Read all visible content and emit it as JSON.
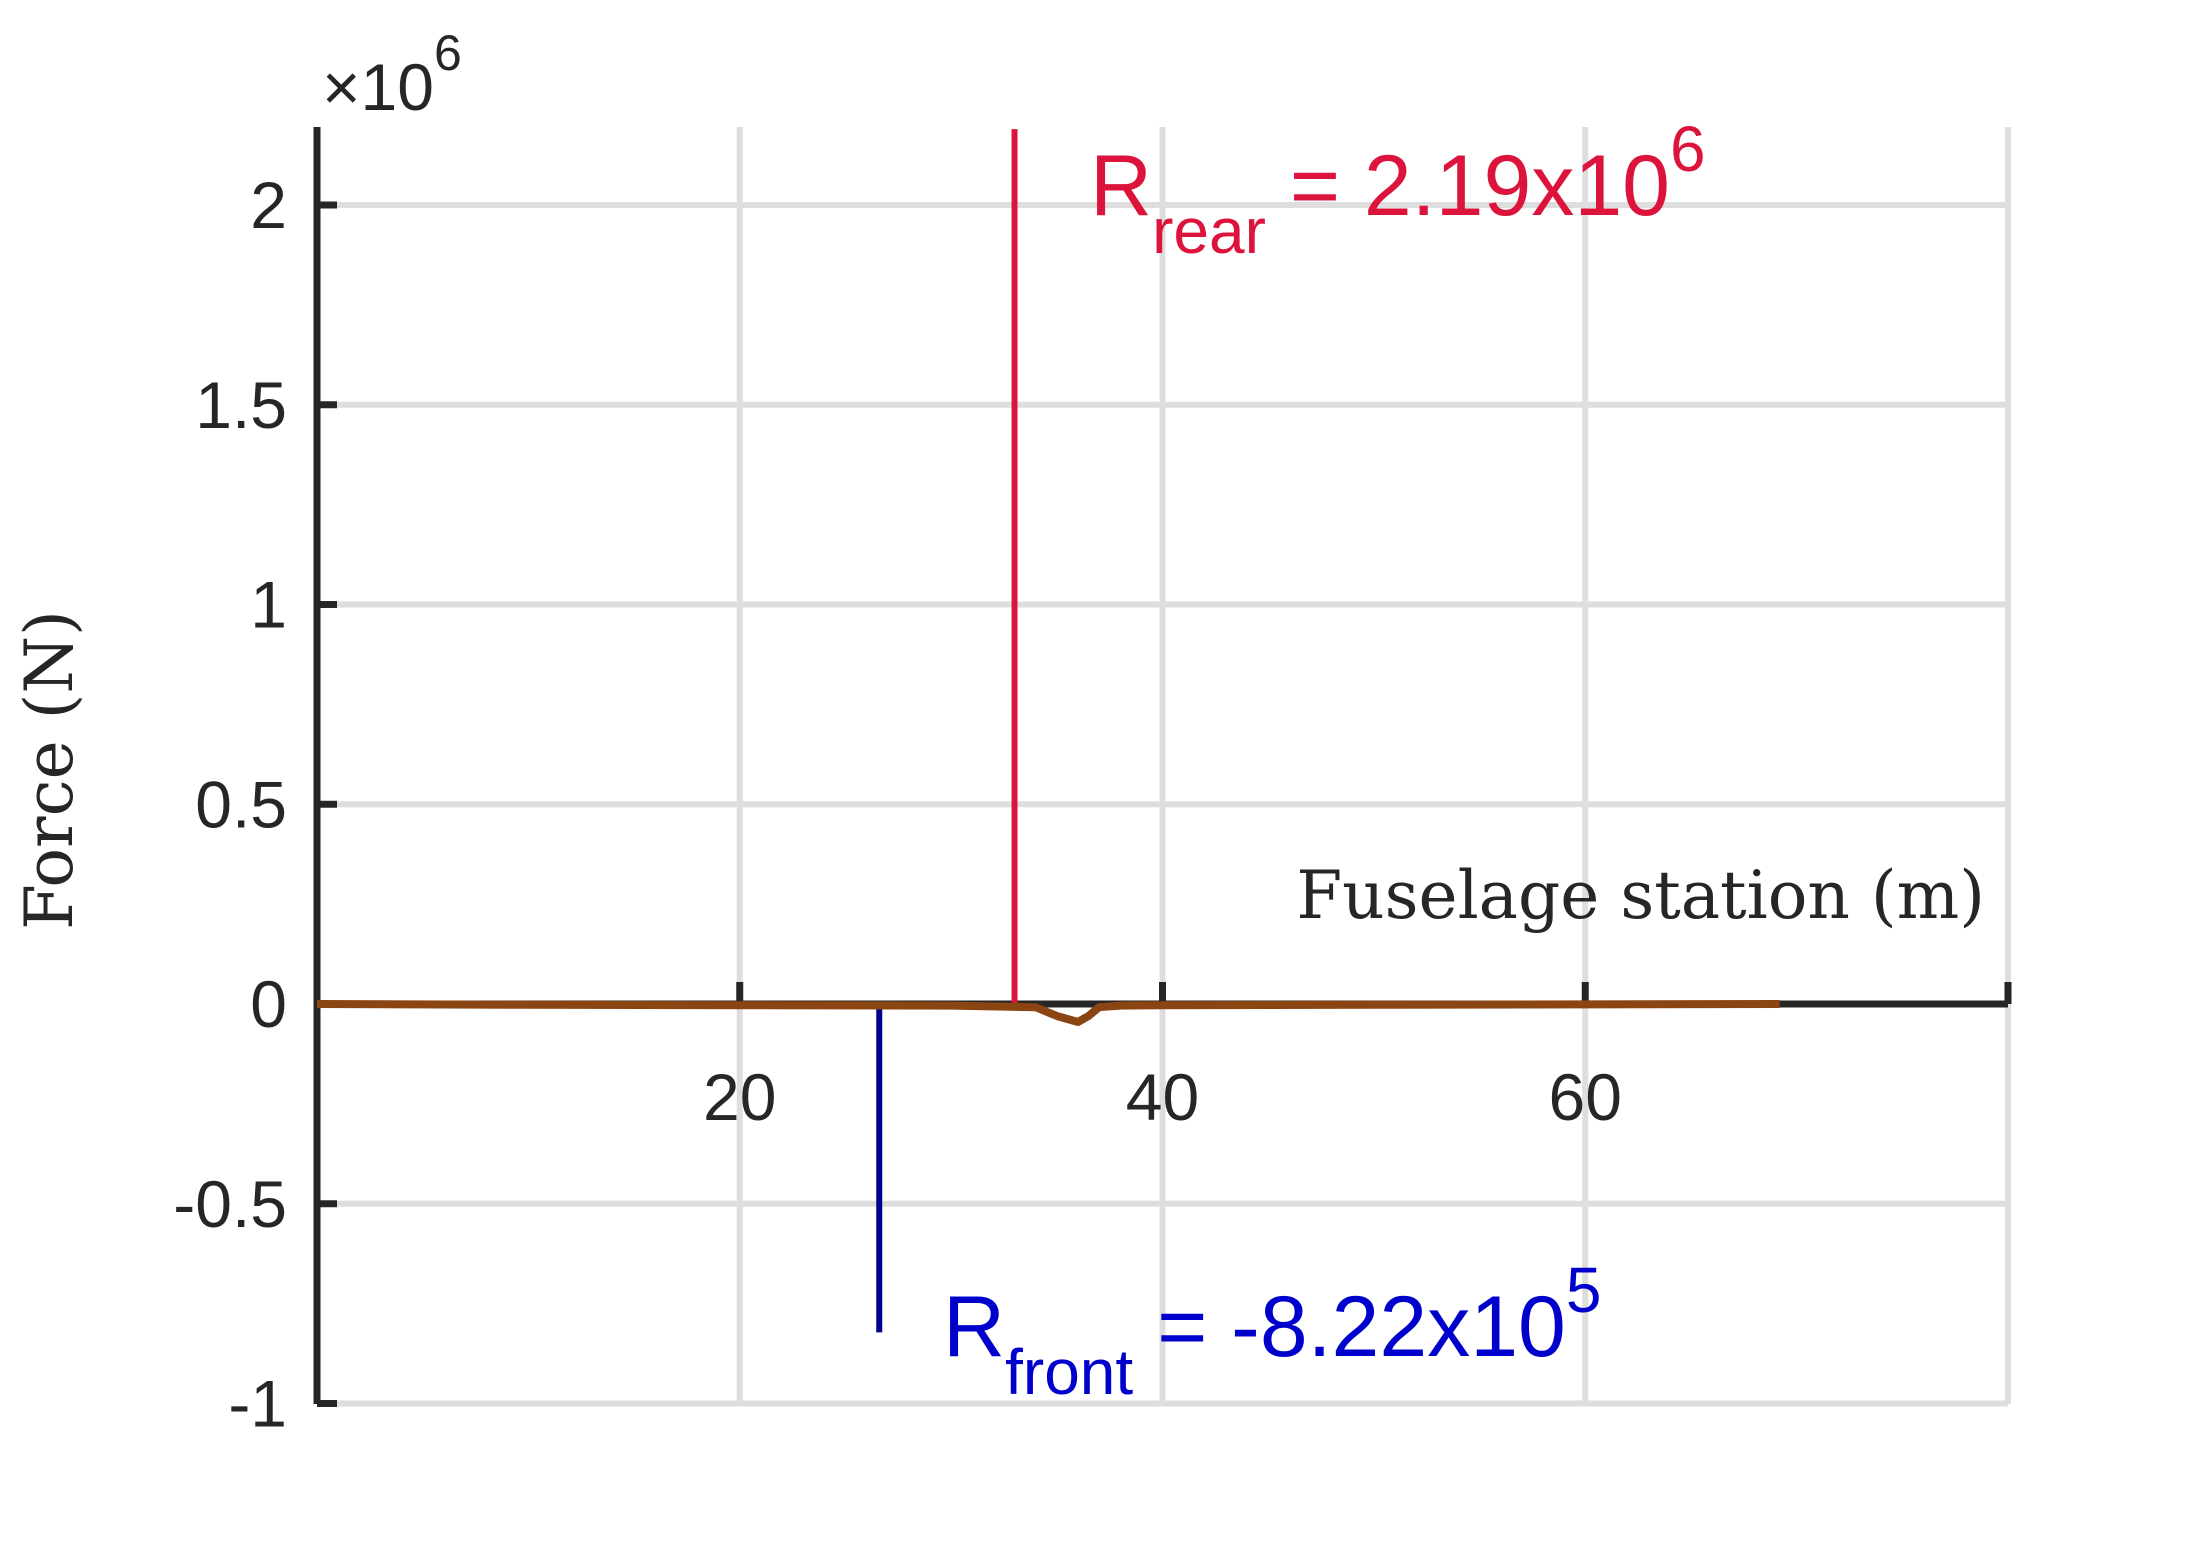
{
  "chart_data": {
    "type": "line",
    "title": "",
    "xlabel": "Fuselage station (m)",
    "ylabel": "Force (N)",
    "y_multiplier_label": {
      "base": "×10",
      "exp": "6"
    },
    "xlim": [
      0,
      80
    ],
    "ylim": [
      -1000000,
      2200000
    ],
    "grid": true,
    "x_ticks": [
      20,
      40,
      60
    ],
    "x_tick_labels": [
      "20",
      "40",
      "60"
    ],
    "y_ticks": [
      -1000000,
      -500000,
      0,
      500000,
      1000000,
      1500000,
      2000000
    ],
    "y_tick_labels": [
      "-1",
      "-0.5",
      "0",
      "0.5",
      "1",
      "1.5",
      "2"
    ],
    "series": [
      {
        "color": "#8B4513",
        "x": [
          0,
          10,
          20,
          30,
          34,
          35,
          36,
          36.5,
          37,
          38,
          40,
          50,
          60,
          69.2
        ],
        "y": [
          0,
          -2000,
          -3000,
          -4000,
          -8000,
          -30000,
          -45000,
          -30000,
          -8000,
          -4000,
          -3000,
          -2000,
          -1000,
          0
        ]
      }
    ],
    "reactions": [
      {
        "id": "rear",
        "x": 33,
        "value": 2190000,
        "color": "#DC143C",
        "label_main": "R",
        "label_sub": "rear",
        "label_rest": " = 2.19x10",
        "label_exp": "6"
      },
      {
        "id": "front",
        "x": 26.6,
        "value": -822000,
        "color": "#00008B",
        "text_color": "#0000CD",
        "label_main": "R",
        "label_sub": "front",
        "label_rest": " = -8.22x10",
        "label_exp": "5"
      }
    ]
  },
  "colors": {
    "axis": "#262626",
    "grid": "#DEDEDE",
    "curve": "#8B4513"
  }
}
